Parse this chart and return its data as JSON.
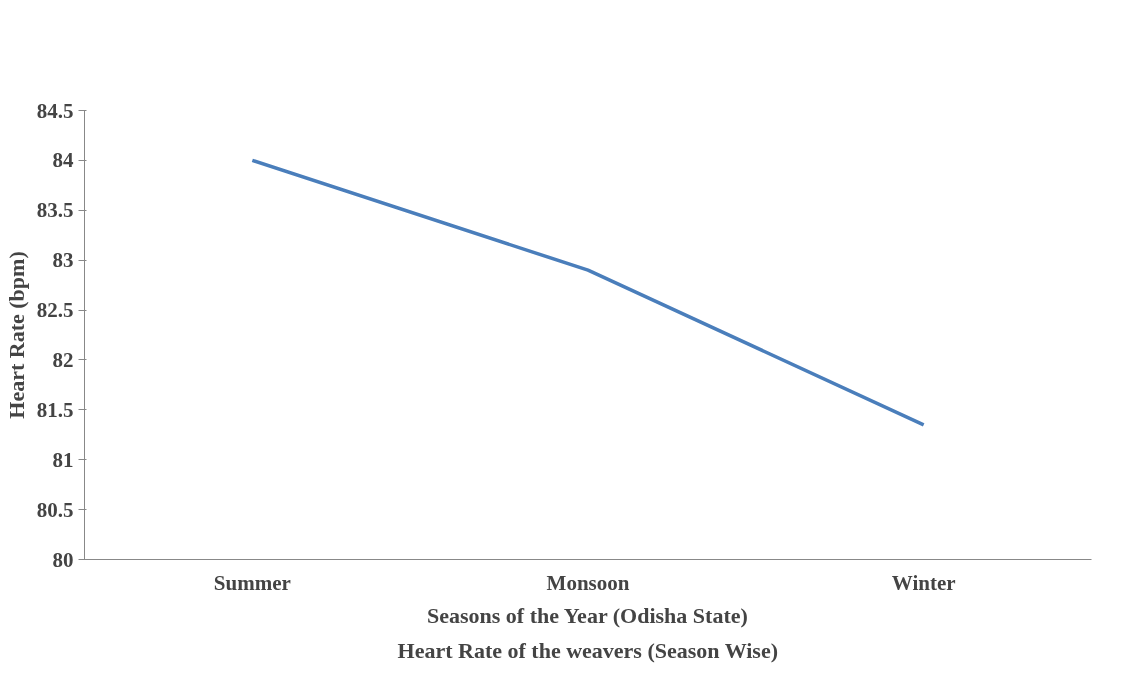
{
  "chart_data": {
    "type": "line",
    "title": "Heart Rate of the weavers (Season Wise)",
    "xlabel": "Seasons of the Year (Odisha State)",
    "ylabel": "Heart Rate (bpm)",
    "categories": [
      "Summer",
      "Monsoon",
      "Winter"
    ],
    "series": [
      {
        "color": "#4a7ebb",
        "values": [
          84.0,
          82.9,
          81.35
        ]
      }
    ],
    "ylim": [
      80,
      84.5
    ],
    "yticks": [
      80,
      80.5,
      81,
      81.5,
      82,
      82.5,
      83,
      83.5,
      84,
      84.5
    ],
    "grid": false,
    "marker": "none",
    "line_style": "solid"
  }
}
